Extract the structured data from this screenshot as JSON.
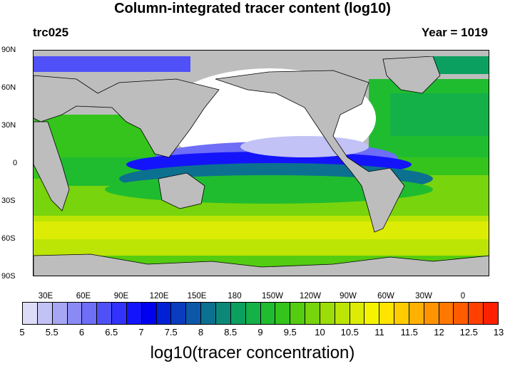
{
  "header": {
    "title": "Column-integrated tracer content (log10)",
    "left_label": "trc025",
    "right_label": "Year = 1019"
  },
  "map": {
    "lat_labels": [
      "90N",
      "60N",
      "30N",
      "0",
      "30S",
      "60S",
      "90S"
    ],
    "lon_labels": [
      "30E",
      "60E",
      "90E",
      "120E",
      "150E",
      "180",
      "150W",
      "120W",
      "90W",
      "60W",
      "30W",
      "0"
    ],
    "land_color": "#bdbdbd",
    "coast_color": "#000000"
  },
  "colorbar": {
    "title": "log10(tracer concentration)",
    "ticks": [
      "5",
      "5.5",
      "6",
      "6.5",
      "7",
      "7.5",
      "8",
      "8.5",
      "9",
      "9.5",
      "10",
      "10.5",
      "11",
      "11.5",
      "12",
      "12.5",
      "13"
    ],
    "colors": [
      "#dcdcf8",
      "#c2c2f6",
      "#a6a6f4",
      "#8a8af4",
      "#6e6ef6",
      "#5050f8",
      "#3232fa",
      "#1414fb",
      "#0000f0",
      "#0020d8",
      "#0a3cc0",
      "#0c58a8",
      "#0c7090",
      "#0c8878",
      "#0ca060",
      "#14b048",
      "#20bc30",
      "#34c41c",
      "#54cc10",
      "#78d40c",
      "#9cdc08",
      "#bce404",
      "#dcec04",
      "#f4f400",
      "#ffe400",
      "#ffcc00",
      "#ffb000",
      "#ff9400",
      "#ff7800",
      "#ff5c00",
      "#ff4000",
      "#ff2000"
    ]
  }
}
